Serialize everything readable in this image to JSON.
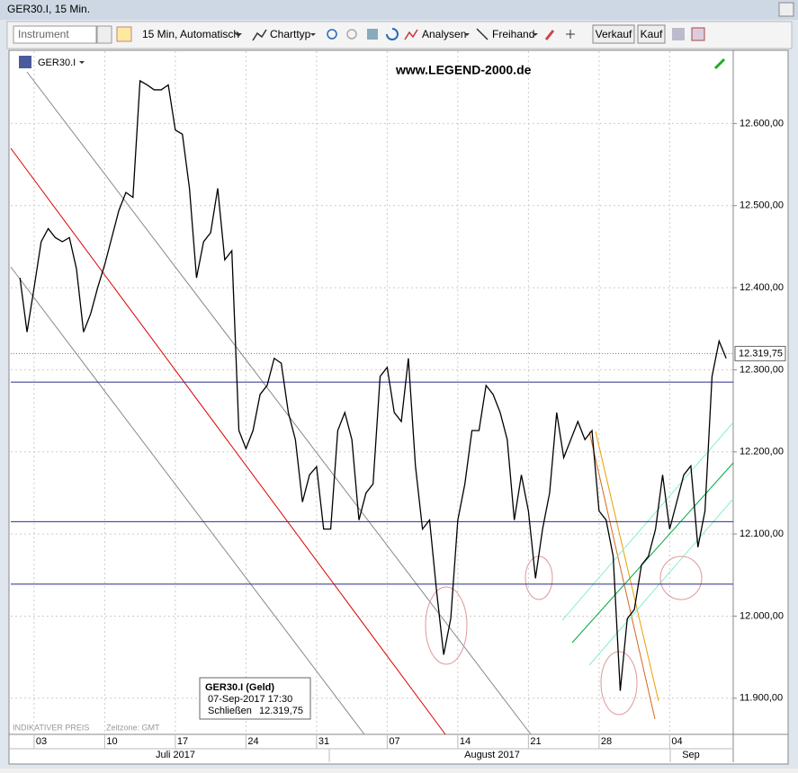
{
  "window": {
    "title": "GER30.I, 15 Min."
  },
  "toolbar": {
    "instrument": "Instrument",
    "interval": "15 Min,  Automatisch",
    "charttype": "Charttyp",
    "analysis": "Analysen",
    "freehand": "Freihand",
    "sell": "Verkauf",
    "buy": "Kauf"
  },
  "chart_data": {
    "type": "line",
    "symbol": "GER30.I",
    "annotation": "www.LEGEND-2000.de",
    "footer": "INDIKATIVER PREIS",
    "timezone": "Zeitzone: GMT",
    "months": [
      "Juli 2017",
      "August 2017",
      "Sep"
    ],
    "x": [
      -1,
      -0.5,
      0,
      0.5,
      1,
      1.5,
      2,
      2.5,
      3,
      3.5,
      4,
      4.5,
      5,
      5.5,
      6,
      6.5,
      7,
      7.5,
      8,
      8.5,
      9,
      9.5,
      10,
      10.5,
      11,
      11.5,
      12,
      12.5,
      13,
      13.5,
      14,
      14.5,
      15,
      15.5,
      16,
      16.5,
      17,
      17.5,
      18,
      18.5,
      19,
      19.5,
      20,
      20.5,
      21,
      21.5,
      22,
      22.5,
      23,
      23.5,
      24,
      24.5,
      25,
      25.5,
      26,
      26.5,
      27,
      27.5,
      28,
      28.5,
      29,
      29.5,
      30,
      30.5,
      31,
      31.5,
      32,
      32.5,
      33,
      33.5,
      34,
      34.5,
      35,
      35.5,
      36,
      36.5,
      37,
      37.5,
      38,
      38.5,
      39,
      39.5,
      40,
      40.5,
      41,
      41.5,
      42,
      42.5,
      43,
      43.5,
      44,
      44.5,
      45,
      45.5,
      46,
      46.5,
      47,
      47.5,
      48,
      48.5,
      49
    ],
    "series": [
      {
        "name": "GER30.I",
        "color": "#000000",
        "values": [
          12412,
          12346,
          12400,
          12456,
          12472,
          12461,
          12456,
          12461,
          12423,
          12346,
          12368,
          12400,
          12428,
          12461,
          12494,
          12516,
          12510,
          12652,
          12647,
          12641,
          12641,
          12647,
          12592,
          12587,
          12521,
          12412,
          12456,
          12467,
          12521,
          12434,
          12445,
          12226,
          12204,
          12226,
          12270,
          12281,
          12314,
          12308,
          12248,
          12215,
          12139,
          12172,
          12182,
          12106,
          12106,
          12226,
          12248,
          12215,
          12117,
          12150,
          12161,
          12292,
          12303,
          12248,
          12237,
          12314,
          12183,
          12106,
          12117,
          12030,
          11953,
          11997,
          12117,
          12161,
          12226,
          12226,
          12281,
          12270,
          12248,
          12215,
          12117,
          12172,
          12128,
          12046,
          12106,
          12150,
          12248,
          12193,
          12215,
          12237,
          12215,
          12226,
          12128,
          12117,
          12073,
          11909,
          11997,
          12008,
          12062,
          12073,
          12106,
          12172,
          12106,
          12139,
          12172,
          12183,
          12084,
          12128,
          12292,
          12335,
          12314
        ]
      }
    ],
    "xlim": [
      -1.65,
      49.5
    ],
    "xticks": [
      {
        "value": 0,
        "label": "03"
      },
      {
        "value": 5,
        "label": "10"
      },
      {
        "value": 10,
        "label": "17"
      },
      {
        "value": 15,
        "label": "24"
      },
      {
        "value": 20,
        "label": "31"
      },
      {
        "value": 25,
        "label": "07"
      },
      {
        "value": 30,
        "label": "14"
      },
      {
        "value": 35,
        "label": "21"
      },
      {
        "value": 40,
        "label": "28"
      },
      {
        "value": 45,
        "label": "04"
      }
    ],
    "ylim": [
      11856,
      12688
    ],
    "yticks": [
      {
        "value": 11900,
        "label": "11.900,00"
      },
      {
        "value": 12000,
        "label": "12.000,00"
      },
      {
        "value": 12100,
        "label": "12.100,00"
      },
      {
        "value": 12200,
        "label": "12.200,00"
      },
      {
        "value": 12300,
        "label": "12.300,00"
      },
      {
        "value": 12400,
        "label": "12.400,00"
      },
      {
        "value": 12500,
        "label": "12.500,00"
      },
      {
        "value": 12600,
        "label": "12.600,00"
      }
    ],
    "grid": true,
    "hlines": [
      12285,
      12115,
      12039
    ],
    "last_price": 12319.75,
    "last_price_label": "12.319,75",
    "info_box": {
      "title": "GER30.I (Geld)",
      "datetime": "07-Sep-2017 17:30",
      "close_label": "Schließen",
      "close": "12.319,75"
    }
  }
}
